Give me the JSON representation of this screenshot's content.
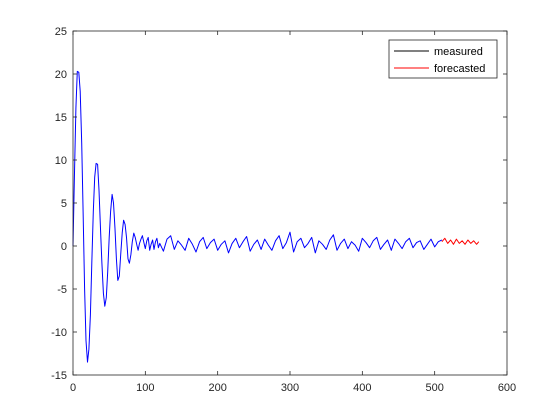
{
  "chart_data": {
    "type": "line",
    "title": "",
    "xlabel": "",
    "ylabel": "",
    "xlim": [
      0,
      600
    ],
    "ylim": [
      -15,
      25
    ],
    "xticks": [
      0,
      100,
      200,
      300,
      400,
      500,
      600
    ],
    "yticks": [
      -15,
      -10,
      -5,
      0,
      5,
      10,
      15,
      20,
      25
    ],
    "grid": false,
    "legend_position": "top-right",
    "series": [
      {
        "name": "measured",
        "color": "#0000ff",
        "legend_color": "#000000",
        "x": [
          0,
          2,
          4,
          6,
          8,
          10,
          12,
          14,
          16,
          18,
          20,
          22,
          24,
          26,
          28,
          30,
          32,
          34,
          36,
          38,
          40,
          42,
          44,
          46,
          48,
          50,
          52,
          54,
          56,
          58,
          60,
          62,
          64,
          66,
          68,
          70,
          72,
          74,
          76,
          78,
          80,
          82,
          84,
          86,
          88,
          90,
          92,
          94,
          96,
          98,
          100,
          102,
          104,
          106,
          108,
          110,
          112,
          114,
          116,
          118,
          120,
          125,
          130,
          135,
          140,
          145,
          150,
          155,
          160,
          165,
          170,
          175,
          180,
          185,
          190,
          195,
          200,
          205,
          210,
          215,
          220,
          225,
          230,
          235,
          240,
          245,
          250,
          255,
          260,
          265,
          270,
          275,
          280,
          285,
          290,
          295,
          300,
          305,
          310,
          315,
          320,
          325,
          330,
          335,
          340,
          345,
          350,
          355,
          360,
          365,
          370,
          375,
          380,
          385,
          390,
          395,
          400,
          405,
          410,
          415,
          420,
          425,
          430,
          435,
          440,
          445,
          450,
          455,
          460,
          465,
          470,
          475,
          480,
          485,
          490,
          495,
          500,
          505,
          510
        ],
        "y": [
          0,
          8,
          16,
          20.3,
          20.2,
          18,
          12,
          4,
          -5,
          -11,
          -13.5,
          -12,
          -8,
          -2,
          4,
          8,
          9.6,
          9.5,
          6.5,
          2,
          -2,
          -5.5,
          -7,
          -6,
          -3,
          1,
          4,
          6,
          5,
          2,
          -1.5,
          -4,
          -3.5,
          -1,
          1.5,
          3,
          2.5,
          1,
          -1.5,
          -2,
          -1,
          0.5,
          1.5,
          1,
          0.2,
          -0.5,
          0.3,
          0.8,
          1.2,
          0.4,
          -0.3,
          0.6,
          1.0,
          -0.5,
          0.2,
          0.7,
          -0.4,
          0.5,
          0.9,
          -0.2,
          0.3,
          -0.6,
          0.8,
          1.2,
          -0.4,
          0.6,
          0.1,
          -0.5,
          0.9,
          0.2,
          -0.7,
          0.5,
          1.0,
          -0.3,
          0.4,
          0.8,
          -0.5,
          0.2,
          0.6,
          -0.8,
          0.3,
          0.9,
          -0.2,
          0.5,
          1.1,
          -0.6,
          0.2,
          0.7,
          -0.4,
          0.8,
          0.1,
          -0.5,
          0.6,
          1.2,
          -0.3,
          0.4,
          1.6,
          -0.7,
          0.5,
          0.9,
          -0.2,
          0.3,
          1.0,
          -0.8,
          0.6,
          0.2,
          -0.4,
          0.7,
          1.3,
          -0.5,
          0.3,
          0.8,
          -0.3,
          0.5,
          0.1,
          -0.6,
          0.9,
          0.4,
          -0.2,
          0.6,
          1.0,
          -0.4,
          0.2,
          0.7,
          -0.5,
          0.8,
          0.3,
          -0.3,
          0.5,
          0.9,
          -0.2,
          0.4,
          0.6,
          -0.4,
          0.2,
          0.8,
          -0.1,
          0.5,
          0.7
        ]
      },
      {
        "name": "forecasted",
        "color": "#ff0000",
        "x": [
          510,
          514,
          518,
          522,
          526,
          530,
          534,
          538,
          542,
          546,
          550,
          554,
          558,
          561
        ],
        "y": [
          0.5,
          0.9,
          0.3,
          0.7,
          0.2,
          0.8,
          0.3,
          0.6,
          0.2,
          0.7,
          0.3,
          0.6,
          0.2,
          0.5
        ]
      }
    ]
  }
}
